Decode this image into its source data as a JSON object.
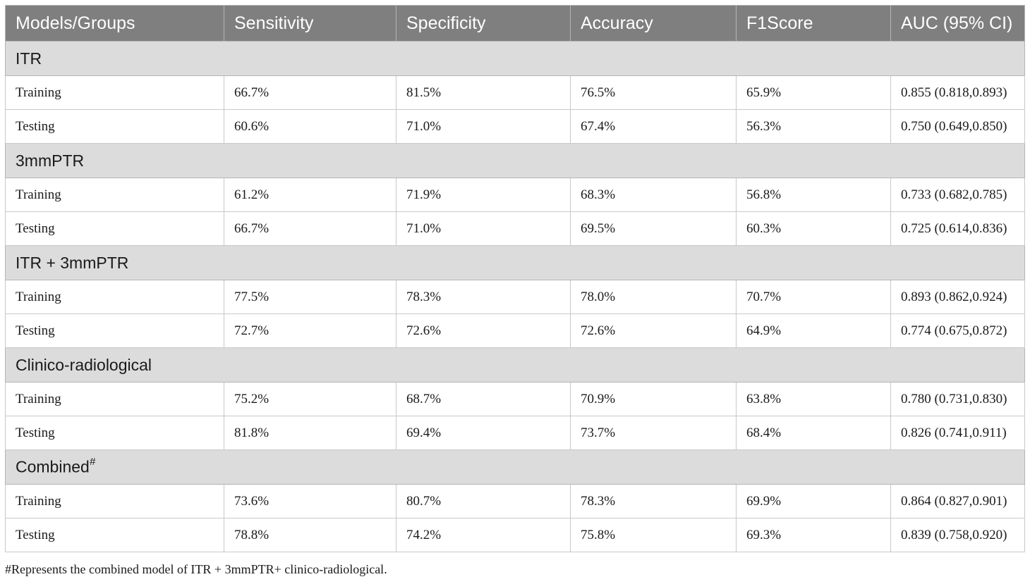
{
  "table": {
    "headers": [
      "Models/Groups",
      "Sensitivity",
      "Specificity",
      "Accuracy",
      "F1Score",
      "AUC (95% CI)"
    ],
    "groups": [
      {
        "name": "ITR",
        "marker": "",
        "rows": [
          [
            "Training",
            "66.7%",
            "81.5%",
            "76.5%",
            "65.9%",
            "0.855 (0.818,0.893)"
          ],
          [
            "Testing",
            "60.6%",
            "71.0%",
            "67.4%",
            "56.3%",
            "0.750 (0.649,0.850)"
          ]
        ]
      },
      {
        "name": "3mmPTR",
        "marker": "",
        "rows": [
          [
            "Training",
            "61.2%",
            "71.9%",
            "68.3%",
            "56.8%",
            "0.733 (0.682,0.785)"
          ],
          [
            "Testing",
            "66.7%",
            "71.0%",
            "69.5%",
            "60.3%",
            "0.725 (0.614,0.836)"
          ]
        ]
      },
      {
        "name": "ITR + 3mmPTR",
        "marker": "",
        "rows": [
          [
            "Training",
            "77.5%",
            "78.3%",
            "78.0%",
            "70.7%",
            "0.893 (0.862,0.924)"
          ],
          [
            "Testing",
            "72.7%",
            "72.6%",
            "72.6%",
            "64.9%",
            "0.774 (0.675,0.872)"
          ]
        ]
      },
      {
        "name": "Clinico-radiological",
        "marker": "",
        "rows": [
          [
            "Training",
            "75.2%",
            "68.7%",
            "70.9%",
            "63.8%",
            "0.780 (0.731,0.830)"
          ],
          [
            "Testing",
            "81.8%",
            "69.4%",
            "73.7%",
            "68.4%",
            "0.826 (0.741,0.911)"
          ]
        ]
      },
      {
        "name": "Combined",
        "marker": "#",
        "rows": [
          [
            "Training",
            "73.6%",
            "80.7%",
            "78.3%",
            "69.9%",
            "0.864 (0.827,0.901)"
          ],
          [
            "Testing",
            "78.8%",
            "74.2%",
            "75.8%",
            "69.3%",
            "0.839 (0.758,0.920)"
          ]
        ]
      }
    ]
  },
  "footnote": "#Represents the combined model of ITR + 3mmPTR+ clinico-radiological."
}
